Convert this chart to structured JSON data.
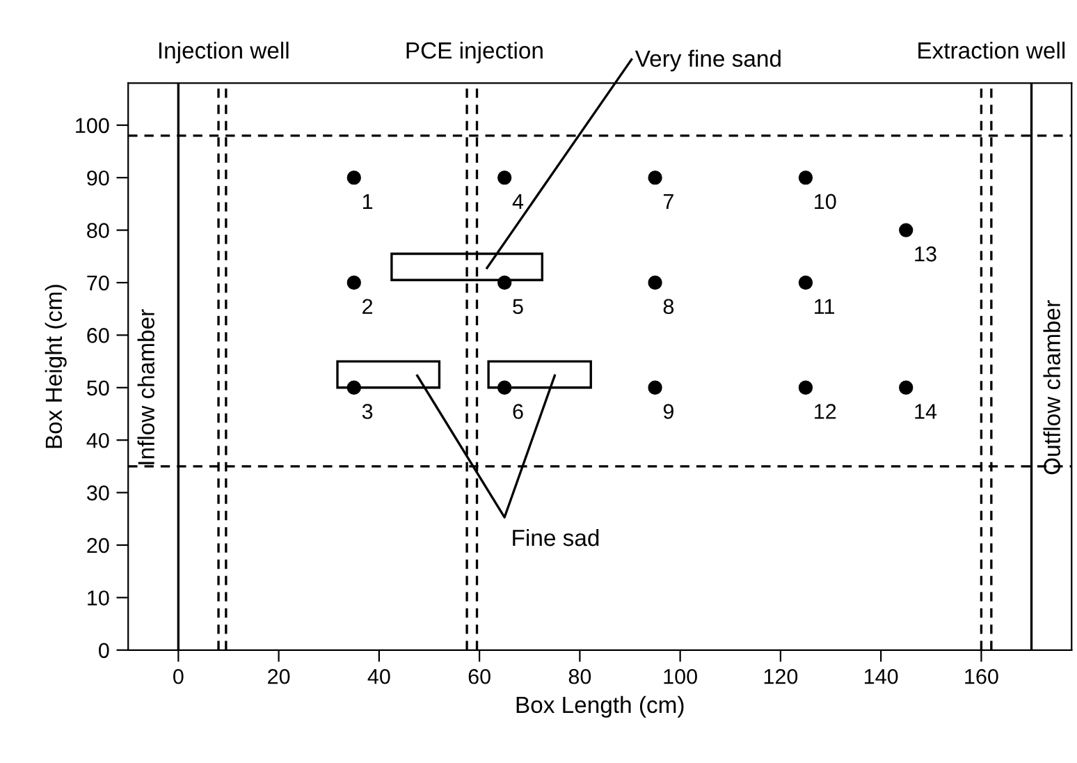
{
  "chart_data": {
    "type": "scatter",
    "xlabel": "Box Length (cm)",
    "ylabel": "Box Height (cm)",
    "x": [
      35,
      35,
      35,
      65,
      65,
      65,
      95,
      95,
      95,
      125,
      125,
      125,
      145,
      145
    ],
    "values": [
      90,
      70,
      50,
      90,
      70,
      50,
      90,
      70,
      50,
      90,
      70,
      50,
      80,
      50
    ],
    "color": "#000000",
    "marker": "circle",
    "grid": false,
    "legend": false,
    "xlim": [
      -10,
      178
    ],
    "ylim": [
      0,
      108
    ],
    "xticks": [
      0,
      20,
      40,
      60,
      80,
      100,
      120,
      140,
      160
    ],
    "yticks": [
      0,
      10,
      20,
      30,
      40,
      50,
      60,
      70,
      80,
      90,
      100
    ],
    "ref_lines": [
      {
        "axis": "x",
        "value": 0,
        "line_style": "solid",
        "color": "#000000"
      },
      {
        "axis": "x",
        "value": 170,
        "line_style": "solid",
        "color": "#000000"
      },
      {
        "axis": "x",
        "value": 8,
        "line_style": "dashed",
        "color": "#000000"
      },
      {
        "axis": "x",
        "value": 9.5,
        "line_style": "dashed",
        "color": "#000000"
      },
      {
        "axis": "x",
        "value": 57.5,
        "line_style": "dashed",
        "color": "#000000"
      },
      {
        "axis": "x",
        "value": 59.5,
        "line_style": "dashed",
        "color": "#000000"
      },
      {
        "axis": "x",
        "value": 160,
        "line_style": "dashed",
        "color": "#000000"
      },
      {
        "axis": "x",
        "value": 162,
        "line_style": "dashed",
        "color": "#000000"
      },
      {
        "axis": "y",
        "value": 98,
        "line_style": "dashed",
        "color": "#000000"
      },
      {
        "axis": "y",
        "value": 35,
        "line_style": "dashed",
        "color": "#000000"
      }
    ],
    "annotations": [
      {
        "text": "1",
        "x": 35,
        "y": 90
      },
      {
        "text": "2",
        "x": 35,
        "y": 70
      },
      {
        "text": "3",
        "x": 35,
        "y": 50
      },
      {
        "text": "4",
        "x": 65,
        "y": 90
      },
      {
        "text": "5",
        "x": 65,
        "y": 70
      },
      {
        "text": "6",
        "x": 65,
        "y": 50
      },
      {
        "text": "7",
        "x": 95,
        "y": 90
      },
      {
        "text": "8",
        "x": 95,
        "y": 70
      },
      {
        "text": "9",
        "x": 95,
        "y": 50
      },
      {
        "text": "10",
        "x": 125,
        "y": 90
      },
      {
        "text": "11",
        "x": 125,
        "y": 70
      },
      {
        "text": "12",
        "x": 125,
        "y": 50
      },
      {
        "text": "13",
        "x": 145,
        "y": 80
      },
      {
        "text": "14",
        "x": 145,
        "y": 50
      },
      "Injection well",
      "PCE injection",
      "Extraction well",
      "Very fine sand",
      "Fine sad",
      "Inflow chamber",
      "Outflow chamber"
    ]
  }
}
